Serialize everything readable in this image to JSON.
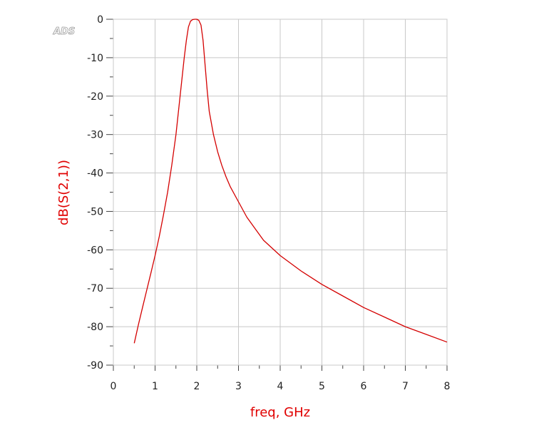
{
  "watermark": "ADS",
  "colors": {
    "trace": "#d40000",
    "grid": "#c8c8c8",
    "axis": "#444444",
    "label": "#e00000"
  },
  "chart_data": {
    "type": "line",
    "xlabel": "freq, GHz",
    "ylabel": "dB(S(2,1))",
    "xlim": [
      0,
      8
    ],
    "ylim": [
      -90,
      0
    ],
    "xticks": [
      0,
      1,
      2,
      3,
      4,
      5,
      6,
      7,
      8
    ],
    "yticks": [
      0,
      -10,
      -20,
      -30,
      -40,
      -50,
      -60,
      -70,
      -80,
      -90
    ],
    "grid": true,
    "series": [
      {
        "x": [
          0.5,
          0.6,
          0.7,
          0.8,
          0.9,
          1.0,
          1.1,
          1.2,
          1.3,
          1.4,
          1.5,
          1.6,
          1.7,
          1.75,
          1.8,
          1.85,
          1.9,
          1.95,
          2.0,
          2.05,
          2.1,
          2.15,
          2.2,
          2.25,
          2.3,
          2.4,
          2.5,
          2.6,
          2.7,
          2.8,
          3.0,
          3.2,
          3.4,
          3.6,
          3.8,
          4.0,
          4.5,
          5.0,
          5.5,
          6.0,
          6.5,
          7.0,
          7.5,
          8.0
        ],
        "y": [
          -84.3,
          -79.5,
          -75,
          -70.5,
          -66,
          -61.5,
          -56.5,
          -51,
          -45,
          -38,
          -30,
          -20,
          -10,
          -5.5,
          -2,
          -0.5,
          -0.1,
          0,
          0,
          -0.3,
          -1.5,
          -5.5,
          -12,
          -18.5,
          -24,
          -30,
          -34.5,
          -38,
          -41,
          -43.5,
          -47.5,
          -51.5,
          -54.5,
          -57.5,
          -59.5,
          -61.5,
          -65.5,
          -69,
          -72,
          -75,
          -77.5,
          -80,
          -82,
          -84
        ]
      }
    ]
  }
}
